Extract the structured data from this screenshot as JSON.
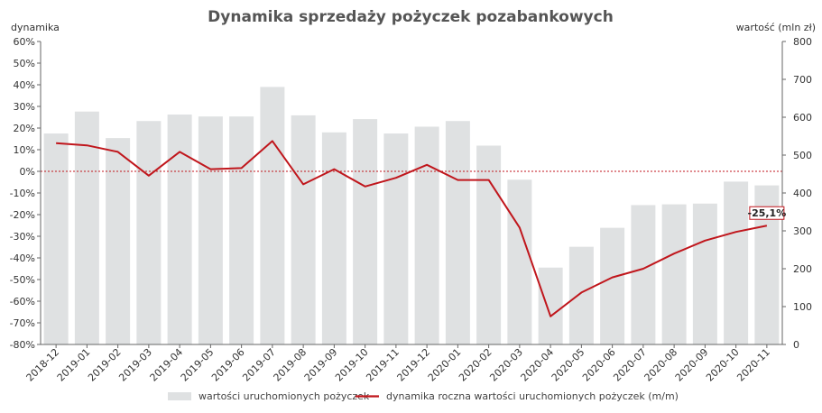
{
  "chart_data": {
    "type": "bar",
    "title": "Dynamika sprzedaży pożyczek pozabankowych",
    "left_axis_label": "dynamika",
    "right_axis_label": "wartość (mln zł)",
    "categories": [
      "2018-12",
      "2019-01",
      "2019-02",
      "2019-03",
      "2019-04",
      "2019-05",
      "2019-06",
      "2019-07",
      "2019-08",
      "2019-09",
      "2019-10",
      "2019-11",
      "2019-12",
      "2020-01",
      "2020-02",
      "2020-03",
      "2020-04",
      "2020-05",
      "2020-06",
      "2020-07",
      "2020-08",
      "2020-09",
      "2020-10",
      "2020-11"
    ],
    "left_axis": {
      "min": -80,
      "max": 60,
      "step": 10,
      "tick_suffix": "%"
    },
    "right_axis": {
      "min": 0,
      "max": 800,
      "step": 100
    },
    "series": [
      {
        "name": "wartości uruchomionych pożyczek",
        "type": "bar",
        "axis": "right",
        "color": "#dfe1e2",
        "values": [
          557,
          615,
          545,
          590,
          607,
          602,
          602,
          680,
          605,
          560,
          595,
          557,
          575,
          590,
          525,
          435,
          203,
          258,
          308,
          368,
          370,
          372,
          430,
          420
        ]
      },
      {
        "name": "dynamika roczna wartości uruchomionych pożyczek (m/m)",
        "type": "line",
        "axis": "left",
        "color": "#c0161c",
        "values": [
          13,
          12,
          9,
          -2,
          9,
          1,
          1.5,
          14,
          -6,
          1,
          -7,
          -3,
          3,
          -4,
          -4,
          -26,
          -67,
          -56,
          -49,
          -45,
          -38,
          -32,
          -28,
          -25.1
        ]
      }
    ],
    "annotation": {
      "text": "-25,1%",
      "index": 23
    },
    "reference_line": {
      "value": 0,
      "axis": "left",
      "color": "#c0161c",
      "style": "dotted"
    },
    "legend_position": "bottom-center",
    "grid": false
  }
}
